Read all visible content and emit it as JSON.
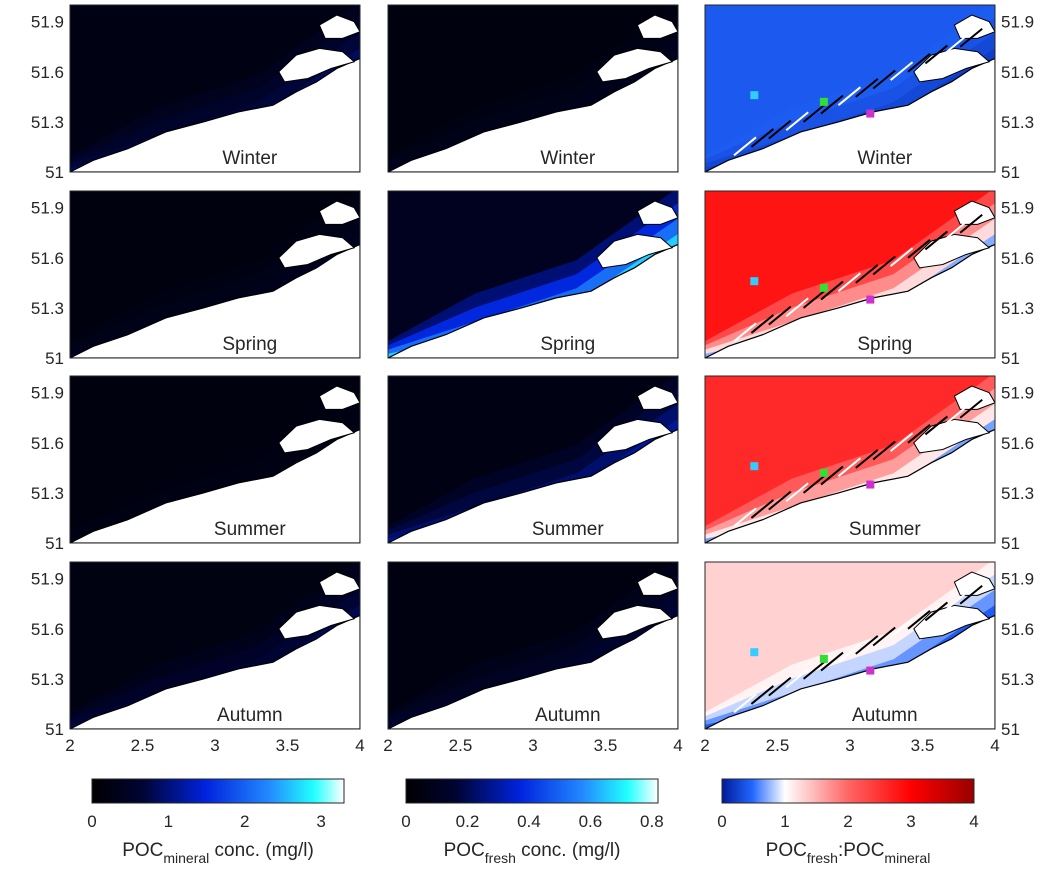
{
  "chart_data": {
    "type": "heatmap",
    "description_layout": "4 rows (seasons) x 3 columns (maps)",
    "rows": [
      "Winter",
      "Spring",
      "Summer",
      "Autumn"
    ],
    "x_axis": {
      "ticks": [
        "2",
        "2.5",
        "3",
        "3.5",
        "4"
      ],
      "range": [
        2,
        4
      ]
    },
    "y_axis": {
      "ticks": [
        "51",
        "51.3",
        "51.6",
        "51.9"
      ],
      "range": [
        51,
        52
      ]
    },
    "columns": [
      {
        "key": "mineral",
        "colormap": "dark-blue-cyan-white",
        "colorbar": {
          "ticks": [
            "0",
            "1",
            "2",
            "3"
          ],
          "range": [
            0,
            3.3
          ],
          "label_main": "POC",
          "label_sub": "mineral",
          "label_rest": " conc. (mg/l)"
        },
        "season_levels": [
          0.55,
          0.2,
          0.1,
          0.5
        ]
      },
      {
        "key": "fresh",
        "colormap": "dark-blue-cyan-white",
        "colorbar": {
          "ticks": [
            "0",
            "0.2",
            "0.4",
            "0.6",
            "0.8"
          ],
          "range": [
            0,
            0.82
          ],
          "label_main": "POC",
          "label_sub": "fresh",
          "label_rest": " conc. (mg/l)"
        },
        "season_levels": [
          0.05,
          0.5,
          0.2,
          0.1
        ]
      },
      {
        "key": "ratio",
        "colormap": "blue-white-red",
        "colorbar": {
          "ticks": [
            "0",
            "1",
            "2",
            "3",
            "4"
          ],
          "range": [
            0,
            4
          ],
          "label_main": "POC",
          "label_sub": "fresh",
          "label_mid": ":POC",
          "label_sub2": "mineral"
        },
        "season_levels": [
          0.4,
          2.8,
          2.6,
          1.3
        ]
      }
    ],
    "station_colors": [
      "#33ccff",
      "#33dd33",
      "#cc33cc"
    ]
  }
}
